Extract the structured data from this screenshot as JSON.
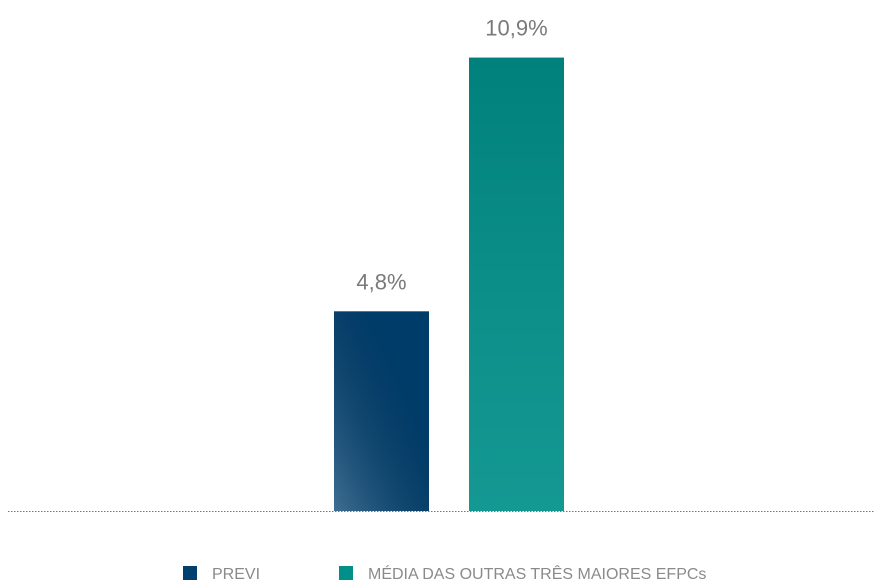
{
  "chart_data": {
    "type": "bar",
    "categories": [
      null
    ],
    "series": [
      {
        "name": "PREVI",
        "color": "#003f6e",
        "values": [
          4.8
        ],
        "value_labels": [
          "4,8%"
        ]
      },
      {
        "name": "MÉDIA DAS OUTRAS TRÊS MAIORES EFPCs",
        "color": "#008f89",
        "values": [
          10.9
        ],
        "value_labels": [
          "10,9%"
        ]
      }
    ]
  }
}
